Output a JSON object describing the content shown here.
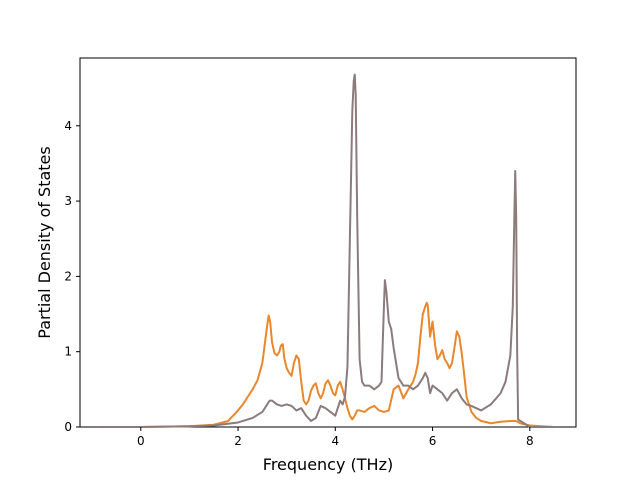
{
  "chart_data": {
    "type": "line",
    "xlabel": "Frequency (THz)",
    "ylabel": "Partial Density of States",
    "xlim": [
      -1.25,
      8.95
    ],
    "ylim": [
      0,
      4.9
    ],
    "x_ticks": [
      0,
      2,
      4,
      6,
      8
    ],
    "y_ticks": [
      0,
      1,
      2,
      3,
      4
    ],
    "grid": false,
    "series": [
      {
        "color": "#e8872b",
        "x": [
          -0.8,
          0.0,
          1.0,
          1.5,
          1.8,
          1.85,
          1.9,
          2.0,
          2.1,
          2.2,
          2.3,
          2.4,
          2.5,
          2.55,
          2.6,
          2.63,
          2.66,
          2.7,
          2.75,
          2.8,
          2.85,
          2.88,
          2.92,
          2.95,
          3.0,
          3.05,
          3.1,
          3.15,
          3.2,
          3.25,
          3.3,
          3.35,
          3.4,
          3.45,
          3.5,
          3.55,
          3.6,
          3.65,
          3.7,
          3.75,
          3.8,
          3.85,
          3.9,
          3.95,
          4.0,
          4.05,
          4.1,
          4.15,
          4.2,
          4.25,
          4.3,
          4.35,
          4.4,
          4.45,
          4.5,
          4.6,
          4.7,
          4.8,
          4.9,
          5.0,
          5.1,
          5.2,
          5.3,
          5.4,
          5.5,
          5.6,
          5.65,
          5.7,
          5.75,
          5.8,
          5.85,
          5.88,
          5.9,
          5.95,
          6.0,
          6.05,
          6.1,
          6.15,
          6.2,
          6.25,
          6.3,
          6.35,
          6.4,
          6.45,
          6.5,
          6.55,
          6.6,
          6.65,
          6.7,
          6.8,
          6.9,
          7.0,
          7.2,
          7.4,
          7.6,
          7.7,
          7.75,
          7.8,
          8.0,
          8.5
        ],
        "values": [
          0.0,
          0.0,
          0.01,
          0.03,
          0.08,
          0.12,
          0.15,
          0.22,
          0.3,
          0.4,
          0.5,
          0.62,
          0.85,
          1.1,
          1.35,
          1.48,
          1.4,
          1.12,
          0.98,
          0.95,
          1.0,
          1.08,
          1.1,
          0.92,
          0.78,
          0.72,
          0.68,
          0.85,
          0.95,
          0.9,
          0.6,
          0.35,
          0.3,
          0.35,
          0.48,
          0.55,
          0.58,
          0.45,
          0.38,
          0.45,
          0.58,
          0.62,
          0.55,
          0.45,
          0.42,
          0.55,
          0.6,
          0.5,
          0.38,
          0.25,
          0.15,
          0.1,
          0.15,
          0.22,
          0.22,
          0.2,
          0.25,
          0.28,
          0.22,
          0.2,
          0.22,
          0.5,
          0.55,
          0.38,
          0.5,
          0.6,
          0.7,
          0.85,
          1.2,
          1.5,
          1.6,
          1.65,
          1.62,
          1.2,
          1.4,
          1.1,
          0.9,
          0.95,
          1.02,
          0.9,
          0.85,
          0.78,
          0.85,
          1.05,
          1.27,
          1.2,
          0.98,
          0.7,
          0.4,
          0.2,
          0.12,
          0.08,
          0.05,
          0.07,
          0.08,
          0.08,
          0.07,
          0.05,
          0.02,
          0.0
        ]
      },
      {
        "color": "#8c7b7b",
        "x": [
          -0.8,
          0.0,
          1.0,
          1.5,
          2.0,
          2.3,
          2.5,
          2.6,
          2.65,
          2.7,
          2.8,
          2.9,
          3.0,
          3.1,
          3.2,
          3.3,
          3.4,
          3.5,
          3.6,
          3.7,
          3.8,
          3.9,
          4.0,
          4.1,
          4.15,
          4.2,
          4.25,
          4.3,
          4.35,
          4.38,
          4.4,
          4.42,
          4.45,
          4.5,
          4.55,
          4.6,
          4.7,
          4.8,
          4.9,
          4.95,
          5.0,
          5.02,
          5.05,
          5.1,
          5.15,
          5.2,
          5.3,
          5.4,
          5.5,
          5.6,
          5.7,
          5.8,
          5.85,
          5.9,
          5.95,
          6.0,
          6.1,
          6.2,
          6.3,
          6.4,
          6.5,
          6.6,
          6.7,
          6.8,
          6.9,
          7.0,
          7.2,
          7.4,
          7.5,
          7.6,
          7.65,
          7.68,
          7.7,
          7.72,
          7.74,
          7.76,
          8.0,
          8.5
        ],
        "values": [
          0.0,
          0.0,
          0.01,
          0.02,
          0.06,
          0.12,
          0.2,
          0.3,
          0.35,
          0.35,
          0.3,
          0.28,
          0.3,
          0.28,
          0.22,
          0.25,
          0.15,
          0.08,
          0.12,
          0.28,
          0.25,
          0.2,
          0.15,
          0.35,
          0.3,
          0.4,
          0.8,
          2.5,
          4.2,
          4.6,
          4.68,
          4.4,
          2.8,
          0.9,
          0.6,
          0.55,
          0.55,
          0.5,
          0.55,
          0.6,
          1.6,
          1.95,
          1.8,
          1.4,
          1.3,
          1.05,
          0.65,
          0.55,
          0.55,
          0.5,
          0.55,
          0.65,
          0.72,
          0.65,
          0.45,
          0.55,
          0.5,
          0.45,
          0.35,
          0.45,
          0.5,
          0.38,
          0.3,
          0.28,
          0.25,
          0.22,
          0.3,
          0.45,
          0.6,
          0.95,
          1.6,
          2.7,
          3.4,
          2.8,
          1.0,
          0.1,
          0.0,
          0.0
        ]
      }
    ]
  }
}
